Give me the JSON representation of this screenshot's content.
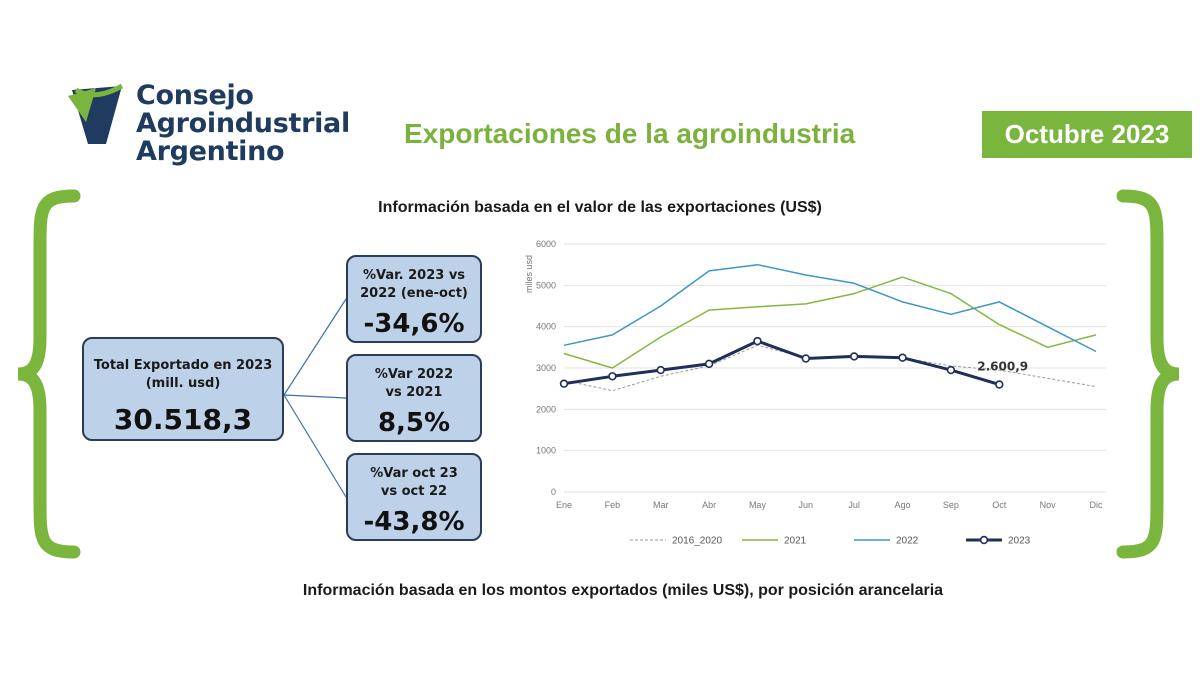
{
  "logo": {
    "lines": [
      "Consejo",
      "Agroindustrial",
      "Argentino"
    ]
  },
  "header": {
    "title": "Exportaciones de la agroindustria",
    "date": "Octubre 2023"
  },
  "subtitle_top": "Información basada en el valor de las exportaciones (US$)",
  "subtitle_bottom": "Información basada en los montos exportados (miles US$), por posición arancelaria",
  "colors": {
    "green": "#7ab53e",
    "navy": "#1f3b60",
    "box_fill": "#bdd1e8"
  },
  "boxes": {
    "total": {
      "label": "Total Exportado en 2023\n(mill. usd)",
      "value": "30.518,3"
    },
    "var1": {
      "label": "%Var. 2023 vs\n2022 (ene-oct)",
      "value": "-34,6%"
    },
    "var2": {
      "label": "%Var 2022\nvs 2021",
      "value": "8,5%"
    },
    "var3": {
      "label": "%Var oct 23\nvs oct 22",
      "value": "-43,8%"
    }
  },
  "chart_data": {
    "type": "line",
    "categories": [
      "Ene",
      "Feb",
      "Mar",
      "Abr",
      "May",
      "Jun",
      "Jul",
      "Ago",
      "Sep",
      "Oct",
      "Nov",
      "Dic"
    ],
    "ylabel": "miles usd",
    "ylim": [
      0,
      6000
    ],
    "yticks": [
      "0",
      "1000",
      "2000",
      "3000",
      "4000",
      "5000",
      "6000"
    ],
    "grid": true,
    "legend_position": "bottom",
    "annotation": {
      "text": "2.600,9",
      "category": "Oct",
      "series": "2023"
    },
    "series": [
      {
        "name": "2016_2020",
        "color": "#9a9a9a",
        "dashed": true,
        "markers": false,
        "width": 1,
        "values": [
          2700,
          2450,
          2800,
          3050,
          3550,
          3250,
          3300,
          3250,
          3050,
          2950,
          2750,
          2550
        ]
      },
      {
        "name": "2021",
        "color": "#84b83f",
        "dashed": false,
        "markers": false,
        "width": 1.5,
        "values": [
          3350,
          3000,
          3750,
          4400,
          4480,
          4550,
          4800,
          5200,
          4800,
          4050,
          3500,
          3800
        ]
      },
      {
        "name": "2022",
        "color": "#3b96c9",
        "dashed": false,
        "markers": false,
        "width": 1.5,
        "values": [
          3550,
          3800,
          4500,
          5350,
          5500,
          5250,
          5050,
          4600,
          4300,
          4600,
          4000,
          3400
        ]
      },
      {
        "name": "2023",
        "color": "#1f2f5a",
        "dashed": false,
        "markers": true,
        "width": 3,
        "values": [
          2620,
          2800,
          2950,
          3100,
          3650,
          3230,
          3280,
          3250,
          2950,
          2600.9,
          null,
          null
        ]
      }
    ]
  }
}
